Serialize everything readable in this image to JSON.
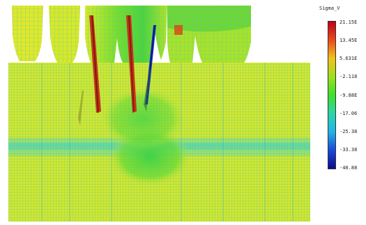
{
  "legend": {
    "title": "Sigma_V",
    "ticks": [
      "21.15E",
      "13.45E",
      "5.631E",
      "-2.118",
      "-9.88E",
      "-17.06",
      "-25.38",
      "-33.38",
      "-40.88"
    ],
    "colors": [
      "#c0001a",
      "#e84a1e",
      "#f2c21c",
      "#9ee01a",
      "#3ee02a",
      "#2ad6a8",
      "#22b4e8",
      "#1a4ad8",
      "#0a0a8c"
    ]
  },
  "plot": {
    "mesh_color": "#2fcfd0",
    "base_color": "#e8ea2c",
    "compression_color": "#4fd23a"
  }
}
